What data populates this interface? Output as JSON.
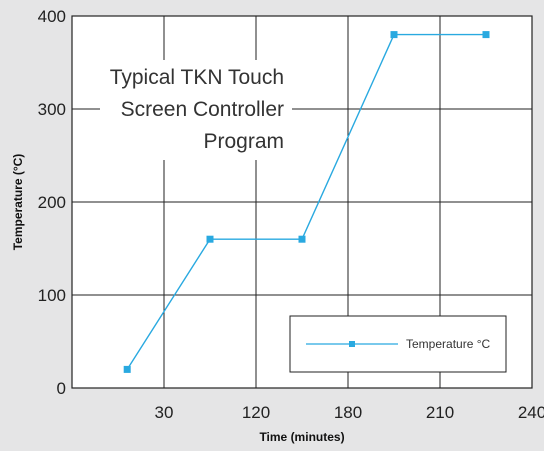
{
  "chart_data": {
    "type": "line",
    "title_lines": [
      "Typical TKN Touch",
      "Screen Controller",
      "Program"
    ],
    "xlabel": "Time (minutes)",
    "ylabel": "Temperature (°C)",
    "x_tick_labels": [
      "30",
      "120",
      "180",
      "210",
      "240"
    ],
    "y_tick_labels": [
      "0",
      "100",
      "200",
      "300",
      "400"
    ],
    "ylim": [
      0,
      400
    ],
    "grid": true,
    "legend_position": "bottom-right",
    "series": [
      {
        "name": "Temperature °C",
        "color": "#29a9e0",
        "points": [
          {
            "x": 0.6,
            "y": 20
          },
          {
            "x": 1.5,
            "y": 160
          },
          {
            "x": 2.5,
            "y": 160
          },
          {
            "x": 3.5,
            "y": 380
          },
          {
            "x": 4.5,
            "y": 380
          }
        ]
      }
    ]
  }
}
